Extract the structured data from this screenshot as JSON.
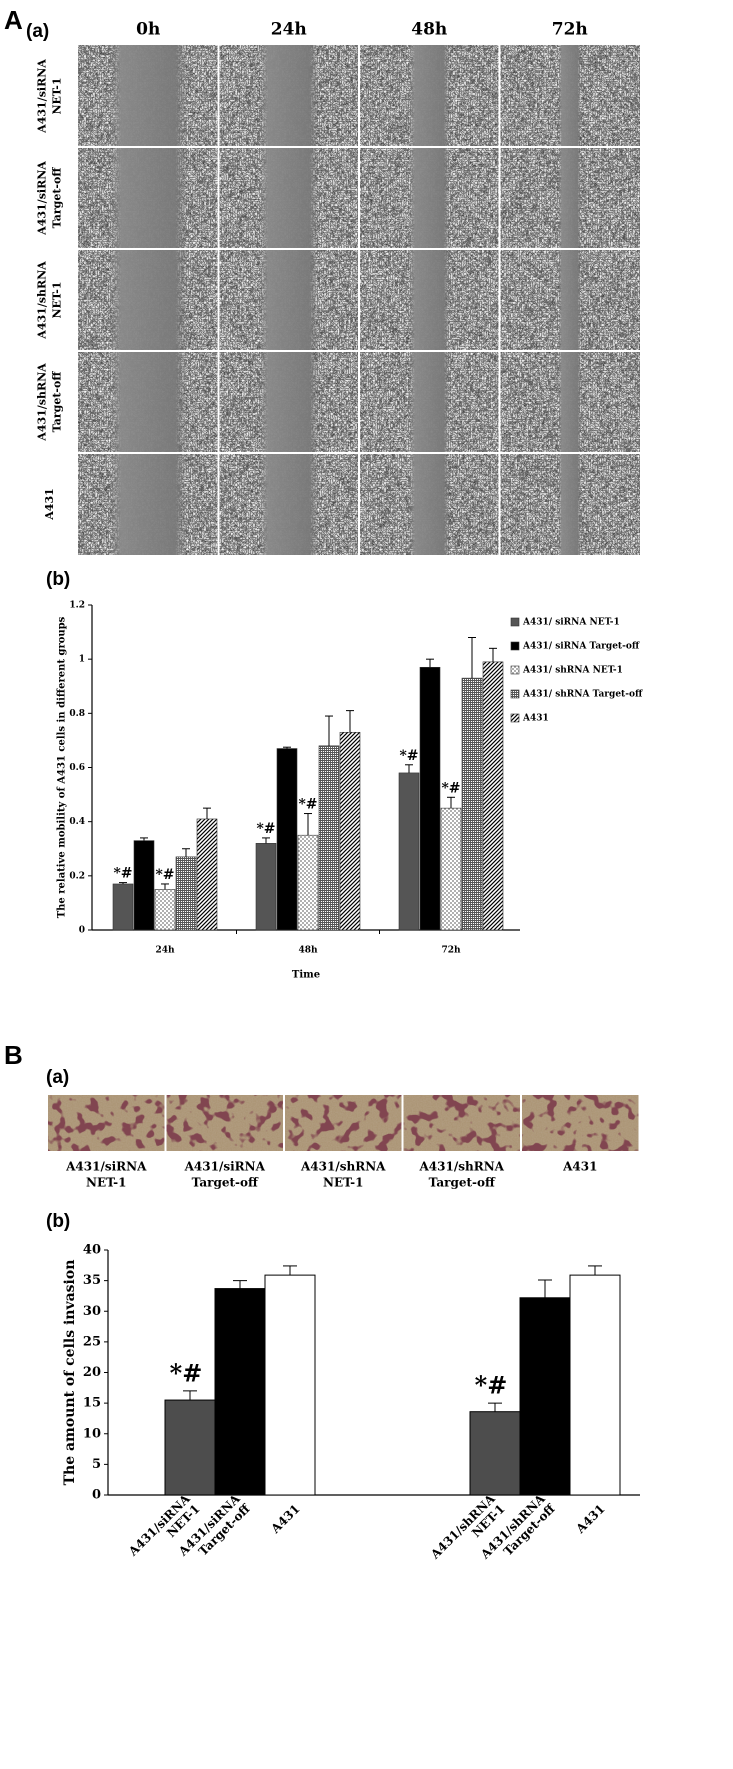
{
  "figure": {
    "panel_A": {
      "label": "A",
      "sublabel_a": "(a)",
      "sublabel_b": "(b)",
      "columns": [
        "0h",
        "24h",
        "48h",
        "72h"
      ],
      "rows": [
        [
          "A431/siRNA",
          "NET-1"
        ],
        [
          "A431/siRNA",
          "Target-off"
        ],
        [
          "A431/shRNA",
          "NET-1"
        ],
        [
          "A431/shRNA",
          "Target-off"
        ],
        [
          "A431"
        ]
      ]
    },
    "panel_B": {
      "label": "B",
      "sublabel_a": "(a)",
      "sublabel_b": "(b)",
      "images": [
        [
          "A431/siRNA",
          "NET-1"
        ],
        [
          "A431/siRNA",
          "Target-off"
        ],
        [
          "A431/shRNA",
          "NET-1"
        ],
        [
          "A431/shRNA",
          "Target-off"
        ],
        [
          "A431"
        ]
      ]
    }
  },
  "chart_data": [
    {
      "type": "bar",
      "ylabel": "The relative mobility of A431 cells in different groups",
      "xlabel": "Time",
      "categories": [
        "24h",
        "48h",
        "72h"
      ],
      "series": [
        {
          "name": "A431/ siRNA NET-1",
          "color": "#555555",
          "pattern": "solid",
          "values": [
            0.17,
            0.32,
            0.58
          ],
          "errors": [
            0.005,
            0.02,
            0.03
          ]
        },
        {
          "name": "A431/ siRNA Target-off",
          "color": "#000000",
          "pattern": "solid",
          "values": [
            0.33,
            0.67,
            0.97
          ],
          "errors": [
            0.01,
            0.005,
            0.03
          ]
        },
        {
          "name": "A431/ shRNA NET-1",
          "color": "#777777",
          "pattern": "dots",
          "values": [
            0.15,
            0.35,
            0.45
          ],
          "errors": [
            0.02,
            0.08,
            0.04
          ]
        },
        {
          "name": "A431/ shRNA Target-off",
          "color": "#555555",
          "pattern": "grid",
          "values": [
            0.27,
            0.68,
            0.93
          ],
          "errors": [
            0.03,
            0.11,
            0.15
          ]
        },
        {
          "name": "A431",
          "color": "#000000",
          "pattern": "stripes",
          "values": [
            0.41,
            0.73,
            0.99
          ],
          "errors": [
            0.04,
            0.08,
            0.05
          ]
        }
      ],
      "annotations": [
        {
          "text": "*#",
          "series": 0,
          "category": 0
        },
        {
          "text": "*#",
          "series": 2,
          "category": 0
        },
        {
          "text": "*#",
          "series": 0,
          "category": 1
        },
        {
          "text": "*#",
          "series": 2,
          "category": 1
        },
        {
          "text": "*#",
          "series": 0,
          "category": 2
        },
        {
          "text": "*#",
          "series": 2,
          "category": 2
        }
      ],
      "ylim": [
        0,
        1.2
      ],
      "yticks": [
        0,
        0.2,
        0.4,
        0.6,
        0.8,
        1,
        1.2
      ],
      "legend": "right"
    },
    {
      "type": "bar",
      "ylabel": "The amount of cells invasion",
      "categories": [
        [
          "A431/siRNA",
          "NET-1"
        ],
        [
          "A431/siRNA",
          "Target-off"
        ],
        [
          "A431"
        ],
        [
          "A431/shRNA",
          "NET-1"
        ],
        [
          "A431/shRNA",
          "Target-off"
        ],
        [
          "A431"
        ]
      ],
      "values": [
        15.5,
        33.7,
        35.9,
        13.6,
        32.2,
        35.9
      ],
      "errors": [
        1.5,
        1.3,
        1.5,
        1.4,
        2.9,
        1.5
      ],
      "colors": [
        "#4d4d4d",
        "#000000",
        "#ffffff",
        "#4d4d4d",
        "#000000",
        "#ffffff"
      ],
      "annotations": [
        {
          "text": "*#",
          "index": 0
        },
        {
          "text": "*#",
          "index": 3
        }
      ],
      "ylim": [
        0,
        40
      ],
      "yticks": [
        0,
        5,
        10,
        15,
        20,
        25,
        30,
        35,
        40
      ]
    }
  ]
}
